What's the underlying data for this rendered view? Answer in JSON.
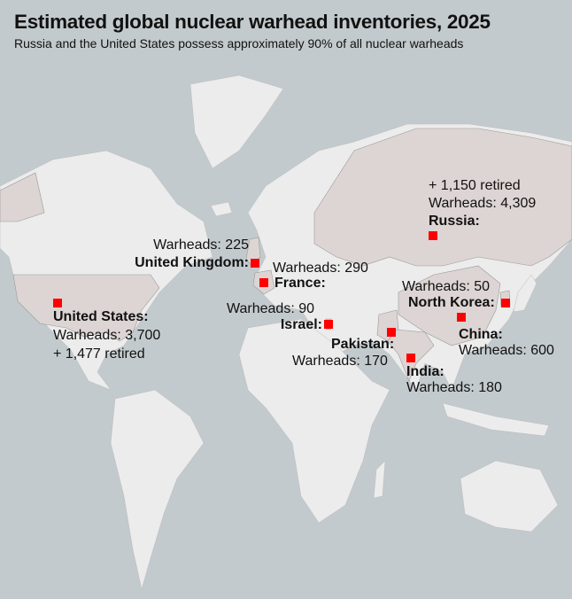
{
  "title": "Estimated global nuclear warhead inventories, 2025",
  "subtitle": "Russia and the United States possess approximately 90% of all nuclear warheads",
  "colors": {
    "sea": "#c3cacd",
    "land": "#ececec",
    "nuclear_state": "#ddd5d3",
    "marker": "#ff0000"
  },
  "countries": {
    "russia": {
      "name": "Russia:",
      "warheads": "Warheads: 4,309",
      "retired": "+ 1,150 retired"
    },
    "us": {
      "name": "United States:",
      "warheads": "Warheads: 3,700",
      "retired": "+ 1,477 retired"
    },
    "uk": {
      "name": "United Kingdom:",
      "warheads": "Warheads: 225"
    },
    "france": {
      "name": "France:",
      "warheads": "Warheads: 290"
    },
    "israel": {
      "name": "Israel:",
      "warheads": "Warheads: 90"
    },
    "pakistan": {
      "name": "Pakistan:",
      "warheads": "Warheads: 170"
    },
    "india": {
      "name": "India:",
      "warheads": "Warheads: 180"
    },
    "north_korea": {
      "name": "North Korea:",
      "warheads": "Warheads: 50"
    },
    "china": {
      "name": "China:",
      "warheads": "Warheads: 600"
    }
  }
}
